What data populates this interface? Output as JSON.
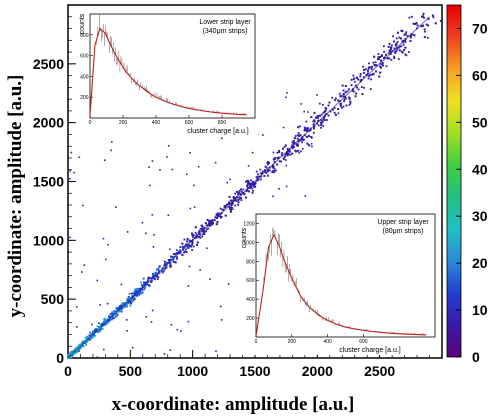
{
  "chart_data": [
    {
      "type": "scatter",
      "subtype": "2d-histogram",
      "xlabel": "x-coordinate: amplitude [a.u.]",
      "ylabel": "y-coordinate: amplitude [a.u.]",
      "xlim": [
        0,
        3000
      ],
      "ylim": [
        0,
        3000
      ],
      "xticks": [
        0,
        500,
        1000,
        1500,
        2000,
        2500
      ],
      "yticks": [
        0,
        500,
        1000,
        1500,
        2000,
        2500
      ],
      "grid": false,
      "colorbar": {
        "range": [
          0,
          75
        ],
        "ticks": [
          0,
          10,
          20,
          30,
          40,
          50,
          60,
          70
        ],
        "colors": [
          "#5a007a",
          "#3a1aa8",
          "#2040d0",
          "#2a8ad8",
          "#20c0c8",
          "#20c080",
          "#40d040",
          "#a0e020",
          "#f0e020",
          "#f8a020",
          "#f04020",
          "#e80000"
        ]
      },
      "trend": {
        "x": [
          0,
          500,
          1000,
          1500,
          2000,
          2500,
          2900
        ],
        "y": [
          0,
          500,
          1000,
          1500,
          2000,
          2500,
          2900
        ]
      }
    },
    {
      "type": "line",
      "title": "Lower strip layer",
      "subtitle": "(340μm strips)",
      "xlabel": "cluster charge [a.u.]",
      "ylabel": "counts",
      "xlim": [
        0,
        1000
      ],
      "ylim": [
        0,
        1000
      ],
      "xticks": [
        0,
        200,
        400,
        600,
        800
      ],
      "yticks": [
        200,
        400,
        600,
        800
      ],
      "series": [
        {
          "x": [
            0,
            30,
            60,
            90,
            120,
            150,
            180,
            220,
            260,
            300,
            350,
            400,
            450,
            500,
            550,
            600,
            650,
            700,
            750,
            800,
            850,
            900,
            950
          ],
          "y": [
            20,
            700,
            860,
            820,
            720,
            620,
            540,
            440,
            370,
            310,
            250,
            200,
            165,
            135,
            112,
            92,
            78,
            65,
            55,
            46,
            40,
            34,
            30
          ]
        }
      ]
    },
    {
      "type": "line",
      "title": "Upper strip layer",
      "subtitle": "(80μm strips)",
      "xlabel": "cluster charge [a.u.]",
      "ylabel": "counts",
      "xlim": [
        0,
        1000
      ],
      "ylim": [
        0,
        1300
      ],
      "xticks": [
        0,
        200,
        400,
        600
      ],
      "yticks": [
        200,
        400,
        600,
        800,
        1000,
        1200
      ],
      "series": [
        {
          "x": [
            0,
            40,
            70,
            100,
            130,
            160,
            200,
            250,
            300,
            350,
            400,
            450,
            500,
            550,
            600,
            650,
            700,
            750,
            800,
            850,
            900,
            950
          ],
          "y": [
            10,
            500,
            950,
            1080,
            960,
            800,
            620,
            430,
            310,
            230,
            175,
            135,
            105,
            85,
            70,
            58,
            48,
            40,
            34,
            30,
            26,
            22
          ]
        }
      ]
    }
  ]
}
